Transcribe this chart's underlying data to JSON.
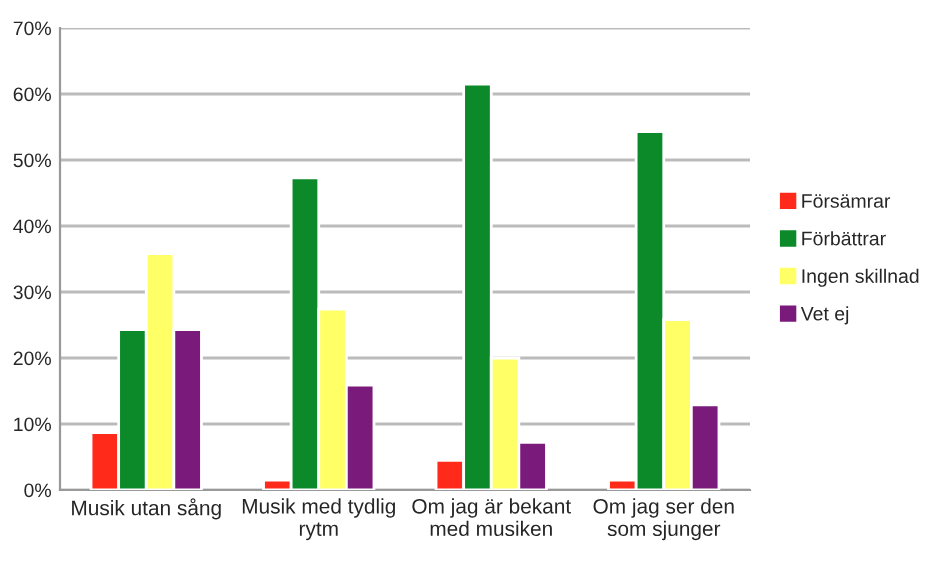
{
  "chart_data": {
    "type": "bar",
    "categories": [
      "Musik utan sång",
      "Musik med tydlig rytm",
      "Om jag är bekant med musiken",
      "Om jag ser den som sjunger"
    ],
    "series": [
      {
        "name": "Försämrar",
        "color": "#ff2a1a",
        "values": [
          8.7,
          1.5,
          4.5,
          1.5
        ]
      },
      {
        "name": "Förbättrar",
        "color": "#0c8a2a",
        "values": [
          24.3,
          47.3,
          61.5,
          54.3
        ]
      },
      {
        "name": "Ingen skillnad",
        "color": "#ffff66",
        "values": [
          35.8,
          27.4,
          20.0,
          25.8
        ]
      },
      {
        "name": "Vet ej",
        "color": "#7a1a7a",
        "values": [
          24.3,
          15.9,
          7.2,
          12.9
        ]
      }
    ],
    "ylim": [
      0,
      70
    ],
    "yticks": [
      {
        "value": 0,
        "label": "0%"
      },
      {
        "value": 10,
        "label": "10%"
      },
      {
        "value": 20,
        "label": "20%"
      },
      {
        "value": 30,
        "label": "30%"
      },
      {
        "value": 40,
        "label": "40%"
      },
      {
        "value": 50,
        "label": "50%"
      },
      {
        "value": 60,
        "label": "60%"
      },
      {
        "value": 70,
        "label": "70%"
      }
    ],
    "grid": "y",
    "legend": "right"
  }
}
